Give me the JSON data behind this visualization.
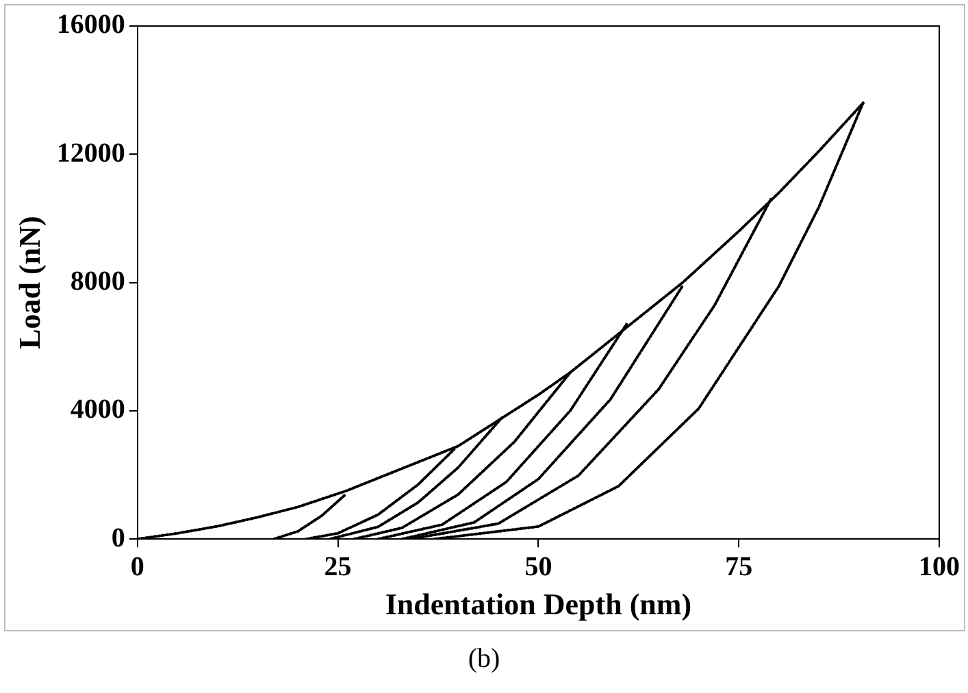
{
  "chart_data": {
    "type": "line",
    "xlabel": "Indentation Depth (nm)",
    "ylabel": "Load (nN)",
    "xlim": [
      0,
      100
    ],
    "xticks": [
      0,
      25,
      50,
      75,
      100
    ],
    "ylim": [
      0,
      16000
    ],
    "yticks": [
      0,
      4000,
      8000,
      12000,
      16000
    ],
    "grid": false,
    "legend": false,
    "marker": "none",
    "line_style": "dotted",
    "annotations": [
      "(b)"
    ],
    "series": [
      {
        "color": "#000000",
        "x": [
          0,
          5,
          10,
          15,
          20,
          26,
          30,
          35,
          40,
          45,
          50,
          54,
          61,
          68,
          75,
          80,
          85,
          90.5
        ],
        "values": [
          0,
          180,
          400,
          680,
          1000,
          1500,
          1900,
          2400,
          2900,
          3700,
          4500,
          5200,
          6600,
          8000,
          9600,
          10800,
          12100,
          13600
        ]
      },
      {
        "color": "#000000",
        "x": [
          17,
          20,
          23,
          26
        ],
        "values": [
          0,
          240,
          730,
          1400
        ]
      },
      {
        "color": "#000000",
        "x": [
          21,
          25,
          30,
          35,
          39.5
        ],
        "values": [
          0,
          180,
          760,
          1700,
          2800
        ]
      },
      {
        "color": "#000000",
        "x": [
          24,
          30,
          35,
          40,
          45.5
        ],
        "values": [
          0,
          380,
          1140,
          2230,
          3800
        ]
      },
      {
        "color": "#000000",
        "x": [
          27,
          33,
          40,
          47,
          54
        ],
        "values": [
          0,
          350,
          1390,
          3030,
          5200
        ]
      },
      {
        "color": "#000000",
        "x": [
          30,
          38,
          46,
          54,
          61
        ],
        "values": [
          0,
          450,
          1780,
          4010,
          6700
        ]
      },
      {
        "color": "#000000",
        "x": [
          33,
          42,
          50,
          59,
          68
        ],
        "values": [
          0,
          520,
          1870,
          4360,
          7900
        ]
      },
      {
        "color": "#000000",
        "x": [
          34,
          45,
          55,
          65,
          72,
          79
        ],
        "values": [
          0,
          480,
          1980,
          4670,
          7300,
          10600
        ]
      },
      {
        "color": "#000000",
        "x": [
          37,
          50,
          60,
          70,
          80,
          85,
          90.5
        ],
        "values": [
          0,
          390,
          1650,
          4070,
          7890,
          10360,
          13600
        ]
      }
    ]
  }
}
